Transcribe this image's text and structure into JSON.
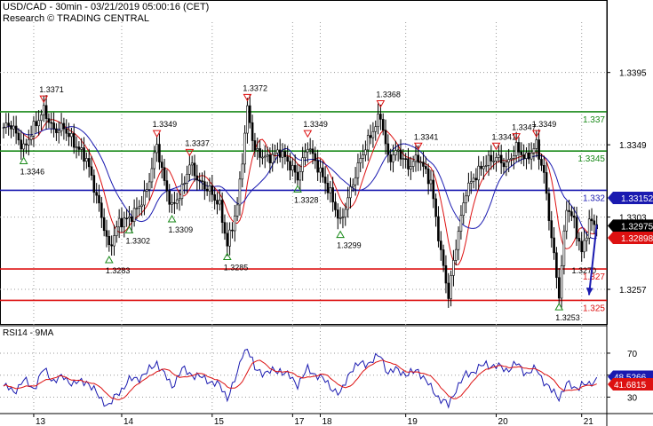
{
  "header": {
    "line1": "USD/CAD - 30min - 03/21/2019 05:00:16 (CET)",
    "line2": "Research © TRADING CENTRAL"
  },
  "chart_data": [
    {
      "type": "line",
      "title": "USD/CAD - 30min",
      "ylim": [
        1.3235,
        1.3427
      ],
      "y_ticks": [
        1.3395,
        1.3349,
        1.3303,
        1.3257
      ],
      "x_ticks": [
        "13",
        "14",
        "15",
        "17",
        "18",
        "19",
        "20",
        "21"
      ],
      "x_tick_index": [
        12,
        47,
        83,
        115,
        126,
        160,
        196,
        230
      ],
      "n_bars": 240,
      "price_path": [
        [
          0,
          1.336
        ],
        [
          3,
          1.3362
        ],
        [
          8,
          1.3346
        ],
        [
          12,
          1.336
        ],
        [
          16,
          1.3371
        ],
        [
          20,
          1.3358
        ],
        [
          24,
          1.336
        ],
        [
          28,
          1.335
        ],
        [
          33,
          1.334
        ],
        [
          38,
          1.331
        ],
        [
          42,
          1.3283
        ],
        [
          46,
          1.33
        ],
        [
          50,
          1.3302
        ],
        [
          54,
          1.331
        ],
        [
          57,
          1.332
        ],
        [
          61,
          1.3349
        ],
        [
          64,
          1.3325
        ],
        [
          67,
          1.3309
        ],
        [
          71,
          1.332
        ],
        [
          74,
          1.3337
        ],
        [
          78,
          1.3325
        ],
        [
          82,
          1.332
        ],
        [
          86,
          1.331
        ],
        [
          89,
          1.3285
        ],
        [
          93,
          1.331
        ],
        [
          95,
          1.334
        ],
        [
          97,
          1.3372
        ],
        [
          100,
          1.3345
        ],
        [
          105,
          1.334
        ],
        [
          110,
          1.3345
        ],
        [
          114,
          1.3336
        ],
        [
          117,
          1.3328
        ],
        [
          121,
          1.3349
        ],
        [
          125,
          1.3335
        ],
        [
          130,
          1.3318
        ],
        [
          134,
          1.3299
        ],
        [
          138,
          1.332
        ],
        [
          142,
          1.334
        ],
        [
          146,
          1.3355
        ],
        [
          150,
          1.3368
        ],
        [
          153,
          1.334
        ],
        [
          157,
          1.3345
        ],
        [
          161,
          1.3335
        ],
        [
          165,
          1.3341
        ],
        [
          170,
          1.3325
        ],
        [
          174,
          1.328
        ],
        [
          177,
          1.3253
        ],
        [
          180,
          1.3285
        ],
        [
          184,
          1.332
        ],
        [
          188,
          1.333
        ],
        [
          192,
          1.3338
        ],
        [
          196,
          1.3341
        ],
        [
          200,
          1.3336
        ],
        [
          204,
          1.3347
        ],
        [
          208,
          1.334
        ],
        [
          212,
          1.3349
        ],
        [
          215,
          1.333
        ],
        [
          218,
          1.329
        ],
        [
          221,
          1.3253
        ],
        [
          224,
          1.331
        ],
        [
          227,
          1.33
        ],
        [
          230,
          1.328
        ],
        [
          233,
          1.33
        ],
        [
          236,
          1.3298
        ]
      ],
      "levels": [
        {
          "label": "1.337",
          "value": 1.337,
          "color": "#1a8a1a"
        },
        {
          "label": "1.3345",
          "value": 1.3345,
          "color": "#1a8a1a"
        },
        {
          "label": "1.332",
          "value": 1.332,
          "color": "#1a1ab0"
        },
        {
          "label": "1.327",
          "value": 1.327,
          "color": "#dd1111"
        },
        {
          "label": "1.325",
          "value": 1.325,
          "color": "#dd1111"
        }
      ],
      "value_boxes": [
        {
          "label": "1.33152",
          "value": 1.33152,
          "color": "#1a1ab0"
        },
        {
          "label": "1.32975",
          "value": 1.32975,
          "color": "#000000"
        },
        {
          "label": "1.32898",
          "value": 1.32898,
          "color": "#dd1111"
        }
      ],
      "annotations": [
        {
          "label": "1.3371",
          "index": 16,
          "value": 1.3371,
          "kind": "high"
        },
        {
          "label": "1.3346",
          "index": 8,
          "value": 1.3346,
          "kind": "low"
        },
        {
          "label": "1.3283",
          "index": 42,
          "value": 1.3283,
          "kind": "low"
        },
        {
          "label": "1.3302",
          "index": 50,
          "value": 1.3302,
          "kind": "low"
        },
        {
          "label": "1.3349",
          "index": 61,
          "value": 1.3349,
          "kind": "high"
        },
        {
          "label": "1.3309",
          "index": 67,
          "value": 1.3309,
          "kind": "low"
        },
        {
          "label": "1.3337",
          "index": 74,
          "value": 1.3337,
          "kind": "high"
        },
        {
          "label": "1.3285",
          "index": 89,
          "value": 1.3285,
          "kind": "low"
        },
        {
          "label": "1.3372",
          "index": 97,
          "value": 1.3372,
          "kind": "high"
        },
        {
          "label": "1.3328",
          "index": 117,
          "value": 1.3328,
          "kind": "low"
        },
        {
          "label": "1.3349",
          "index": 121,
          "value": 1.3349,
          "kind": "high"
        },
        {
          "label": "1.3299",
          "index": 134,
          "value": 1.3299,
          "kind": "low"
        },
        {
          "label": "1.3368",
          "index": 150,
          "value": 1.3368,
          "kind": "high"
        },
        {
          "label": "1.3341",
          "index": 165,
          "value": 1.3341,
          "kind": "high"
        },
        {
          "label": "1.3341",
          "index": 196,
          "value": 1.3341,
          "kind": "high"
        },
        {
          "label": "1.3347",
          "index": 204,
          "value": 1.3347,
          "kind": "high"
        },
        {
          "label": "1.3349",
          "index": 212,
          "value": 1.3349,
          "kind": "high"
        },
        {
          "label": "1.3253",
          "index": 221,
          "value": 1.3253,
          "kind": "low"
        },
        {
          "label": "1.3270",
          "index": 231,
          "value": 1.327,
          "kind": "text"
        }
      ],
      "projection": {
        "from": [
          236,
          1.3298
        ],
        "to": [
          240,
          1.325
        ],
        "color": "#1a1ab0"
      },
      "ma_colors": {
        "fast": "#dd1111",
        "slow": "#1a1ab0"
      }
    },
    {
      "type": "line",
      "title": "RSI14 - 9MA",
      "ylim": [
        15,
        95
      ],
      "y_ticks": [
        70,
        50,
        30
      ],
      "rsi_path": [
        [
          0,
          40
        ],
        [
          4,
          35
        ],
        [
          8,
          45
        ],
        [
          12,
          38
        ],
        [
          16,
          55
        ],
        [
          20,
          45
        ],
        [
          24,
          48
        ],
        [
          28,
          42
        ],
        [
          33,
          45
        ],
        [
          38,
          30
        ],
        [
          42,
          22
        ],
        [
          46,
          35
        ],
        [
          50,
          45
        ],
        [
          54,
          48
        ],
        [
          57,
          52
        ],
        [
          61,
          62
        ],
        [
          64,
          50
        ],
        [
          67,
          40
        ],
        [
          71,
          55
        ],
        [
          74,
          52
        ],
        [
          78,
          48
        ],
        [
          82,
          45
        ],
        [
          86,
          40
        ],
        [
          89,
          30
        ],
        [
          93,
          50
        ],
        [
          95,
          70
        ],
        [
          97,
          75
        ],
        [
          100,
          55
        ],
        [
          105,
          52
        ],
        [
          110,
          55
        ],
        [
          114,
          48
        ],
        [
          117,
          42
        ],
        [
          121,
          55
        ],
        [
          125,
          50
        ],
        [
          130,
          40
        ],
        [
          134,
          32
        ],
        [
          138,
          55
        ],
        [
          142,
          60
        ],
        [
          146,
          62
        ],
        [
          150,
          68
        ],
        [
          153,
          52
        ],
        [
          157,
          55
        ],
        [
          161,
          50
        ],
        [
          165,
          55
        ],
        [
          170,
          38
        ],
        [
          174,
          28
        ],
        [
          177,
          22
        ],
        [
          180,
          38
        ],
        [
          184,
          50
        ],
        [
          188,
          55
        ],
        [
          192,
          60
        ],
        [
          196,
          58
        ],
        [
          200,
          55
        ],
        [
          204,
          60
        ],
        [
          208,
          52
        ],
        [
          212,
          55
        ],
        [
          215,
          45
        ],
        [
          218,
          35
        ],
        [
          221,
          30
        ],
        [
          224,
          42
        ],
        [
          227,
          38
        ],
        [
          230,
          42
        ],
        [
          233,
          40
        ],
        [
          236,
          48
        ]
      ],
      "value_boxes": [
        {
          "label": "48.5266",
          "value": 48.5266,
          "color": "#1a1ab0"
        },
        {
          "label": "41.6815",
          "value": 41.6815,
          "color": "#dd1111"
        }
      ],
      "line_colors": {
        "rsi": "#1a1ab0",
        "ma": "#dd1111"
      }
    }
  ]
}
